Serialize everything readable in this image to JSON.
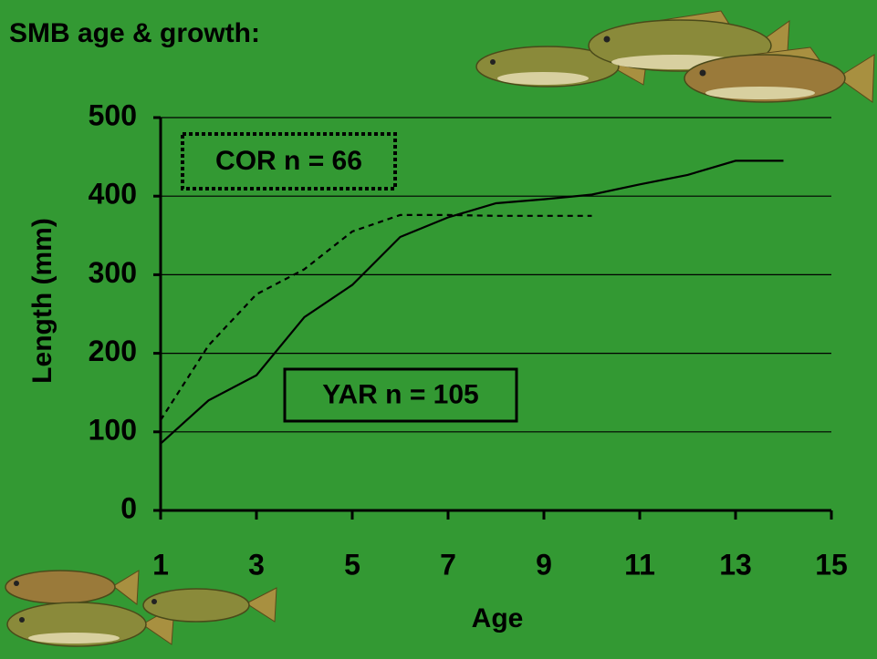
{
  "chart_data": {
    "type": "line",
    "title": "SMB age & growth:",
    "x_label": "Age",
    "y_label": "Length  (mm)",
    "x": [
      1,
      2,
      3,
      4,
      5,
      6,
      7,
      8,
      9,
      10,
      11,
      12,
      13,
      14
    ],
    "series": [
      {
        "name": "YAR n = 105",
        "color": "#000000",
        "line_style": "solid",
        "values": [
          85,
          140,
          172,
          246,
          287,
          348,
          373,
          391,
          396,
          402,
          415,
          427,
          445,
          445
        ]
      },
      {
        "name": "COR n = 66",
        "color": "#000000",
        "line_style": "dashed",
        "values": [
          115,
          210,
          275,
          307,
          355,
          376,
          376,
          375,
          375,
          375,
          null,
          null,
          null,
          null
        ]
      }
    ],
    "xlim": [
      1,
      15
    ],
    "xticks": [
      1,
      3,
      5,
      7,
      9,
      11,
      13,
      15
    ],
    "ylim": [
      0,
      500
    ],
    "yticks": [
      0,
      100,
      200,
      300,
      400,
      500
    ],
    "grid": true
  }
}
